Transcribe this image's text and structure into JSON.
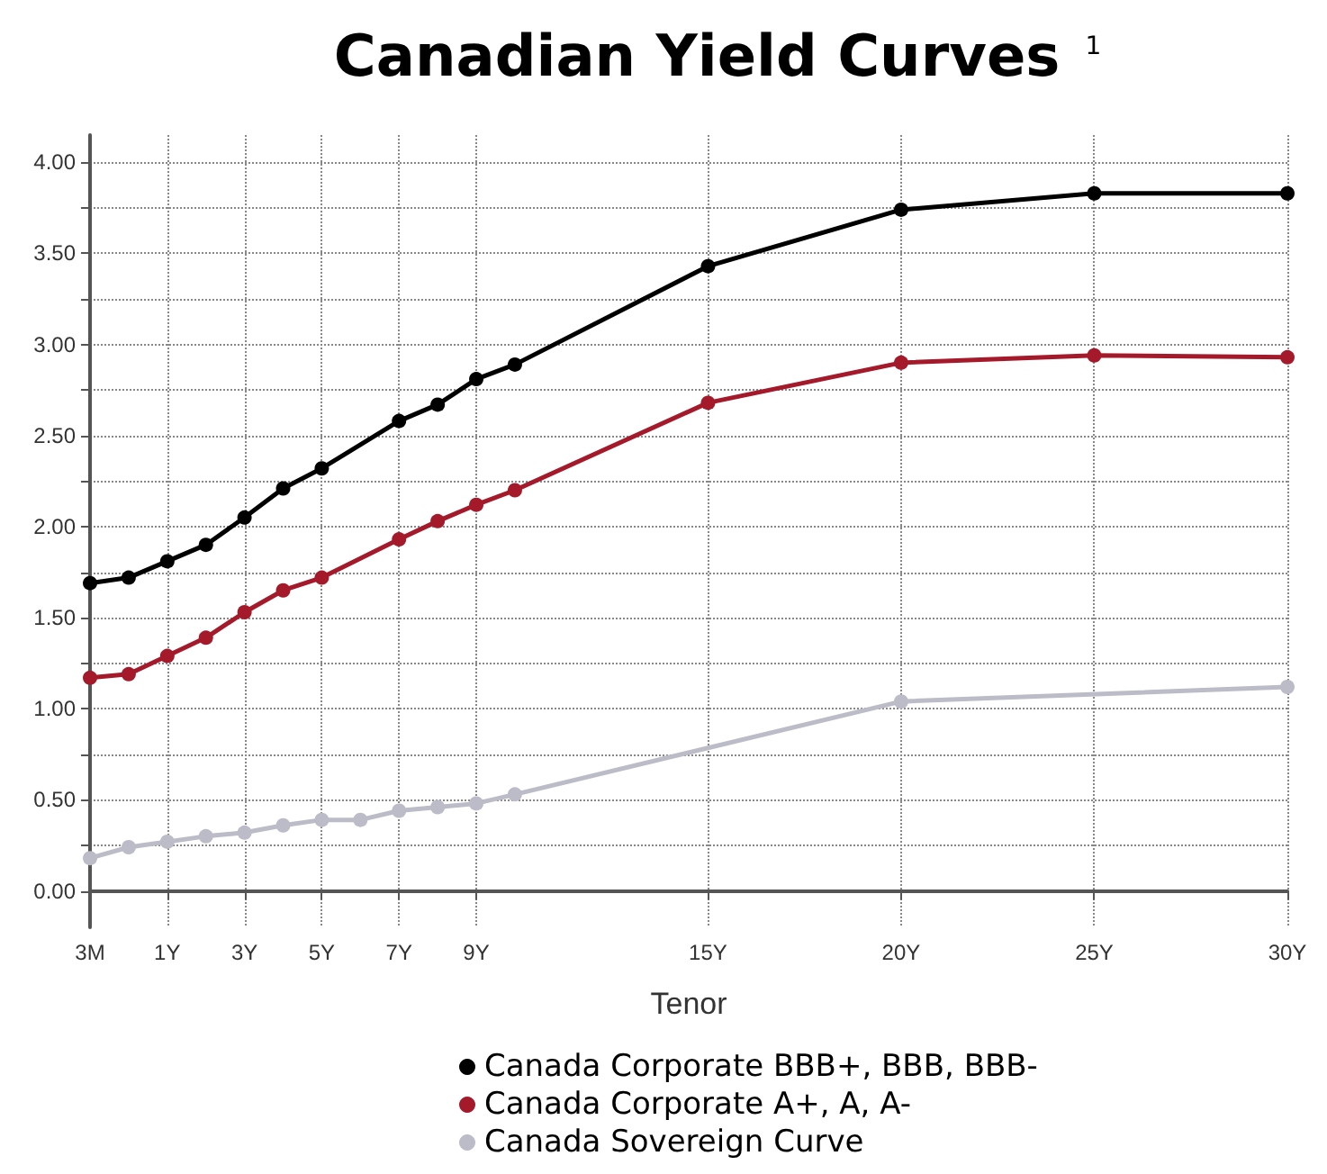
{
  "chart_data": {
    "type": "line",
    "title": "Canadian Yield Curves$^{1}$",
    "xlabel": "Tenor",
    "categories": [
      "3M",
      null,
      "1Y",
      null,
      "3Y",
      null,
      "5Y",
      null,
      "7Y",
      null,
      "9Y",
      null,
      null,
      null,
      null,
      null,
      "15Y",
      null,
      null,
      null,
      null,
      "20Y",
      null,
      null,
      null,
      null,
      "25Y",
      null,
      null,
      null,
      null,
      "30Y"
    ],
    "series": [
      {
        "name": "Canada Corporate BBB+, BBB, BBB-",
        "color": "#000000",
        "values": [
          1.69,
          1.72,
          1.81,
          1.9,
          2.05,
          2.21,
          2.32,
          null,
          2.58,
          2.67,
          2.81,
          2.89,
          null,
          null,
          null,
          null,
          3.43,
          null,
          null,
          null,
          null,
          3.74,
          null,
          null,
          null,
          null,
          3.83,
          null,
          null,
          null,
          null,
          3.83
        ]
      },
      {
        "name": "Canada Corporate A+, A, A-",
        "color": "#a51a2a",
        "values": [
          1.17,
          1.19,
          1.29,
          1.39,
          1.53,
          1.65,
          1.72,
          null,
          1.93,
          2.03,
          2.12,
          2.2,
          null,
          null,
          null,
          null,
          2.68,
          null,
          null,
          null,
          null,
          2.9,
          null,
          null,
          null,
          null,
          2.94,
          null,
          null,
          null,
          null,
          2.93
        ]
      },
      {
        "name": "Canada Sovereign Curve",
        "color": "#bcbcc8",
        "values": [
          0.18,
          0.24,
          0.27,
          0.3,
          0.32,
          0.36,
          0.39,
          0.39,
          0.44,
          0.46,
          0.48,
          0.53,
          null,
          null,
          null,
          null,
          null,
          null,
          null,
          null,
          null,
          1.04,
          null,
          null,
          null,
          null,
          null,
          null,
          null,
          null,
          null,
          1.12
        ]
      }
    ],
    "ylim": [
      -0.2,
      4.15
    ],
    "yticks": [
      {
        "value": 0,
        "label": "0.00"
      },
      {
        "value": 0.25,
        "label": null
      },
      {
        "value": 0.5,
        "label": "0.50"
      },
      {
        "value": 0.75,
        "label": null
      },
      {
        "value": 1,
        "label": "1.00"
      },
      {
        "value": 1.25,
        "label": null
      },
      {
        "value": 1.5,
        "label": "1.50"
      },
      {
        "value": 1.75,
        "label": null
      },
      {
        "value": 2,
        "label": "2.00"
      },
      {
        "value": 2.25,
        "label": null
      },
      {
        "value": 2.5,
        "label": "2.50"
      },
      {
        "value": 2.75,
        "label": null
      },
      {
        "value": 3,
        "label": "3.00"
      },
      {
        "value": 3.25,
        "label": null
      },
      {
        "value": 3.5,
        "label": "3.50"
      },
      {
        "value": 3.75,
        "label": null
      },
      {
        "value": 4,
        "label": "4.00"
      }
    ],
    "grid": true,
    "legend": "bottom",
    "marker": "circle",
    "line_style": "solid"
  }
}
